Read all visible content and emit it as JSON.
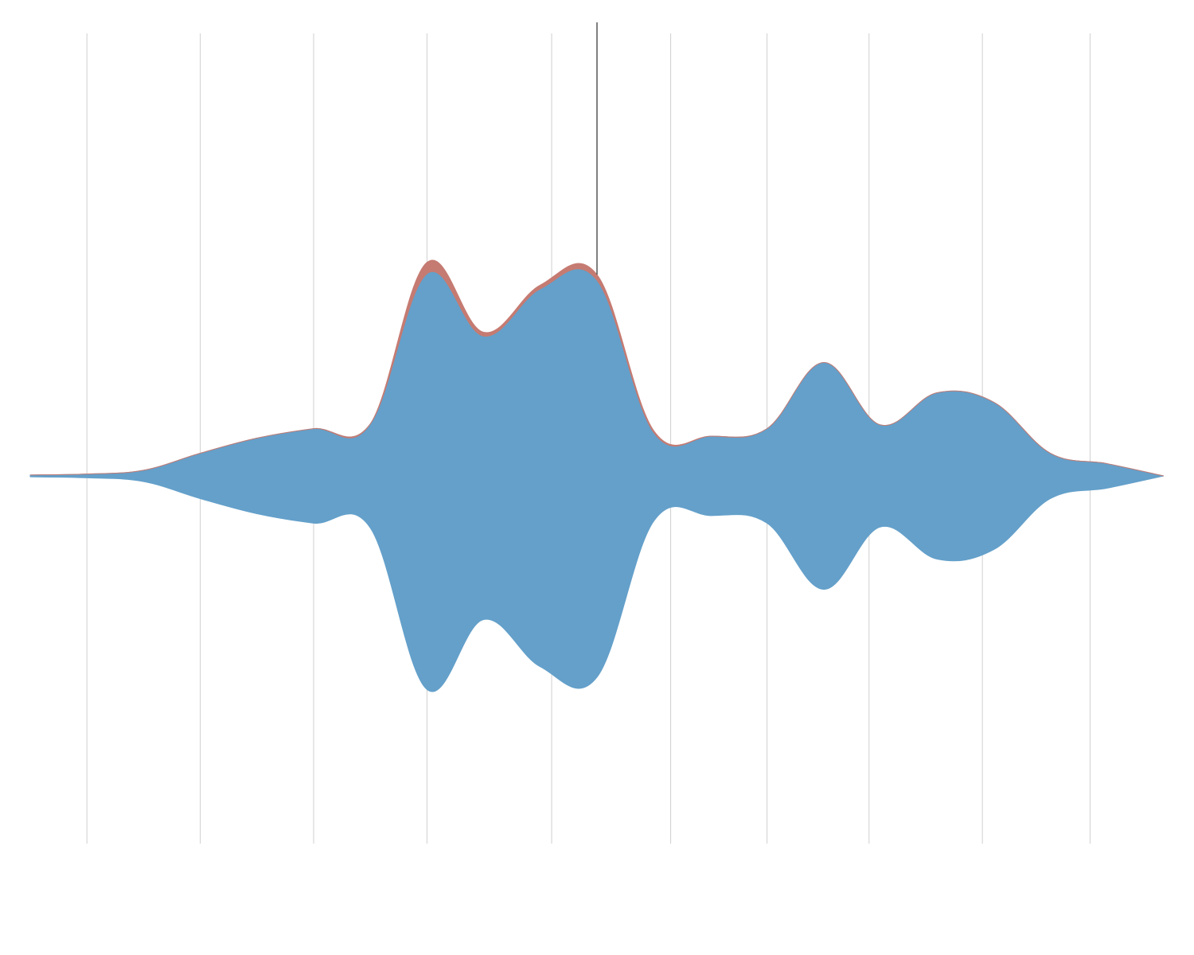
{
  "chart_data": {
    "type": "area",
    "subtype": "streamgraph",
    "baseline": "symmetric",
    "title": "",
    "xlabel": "",
    "ylabel": "",
    "axes_visible": false,
    "grid": "vertical",
    "legend": "none",
    "x": [
      0,
      1,
      2,
      3,
      4,
      5,
      6,
      7,
      8,
      9,
      10,
      11,
      12,
      13,
      14,
      15,
      16,
      17,
      18,
      19,
      20
    ],
    "series": [
      {
        "color": "#64a0ca",
        "values": [
          1,
          2,
          6,
          24,
          40,
          50,
          55,
          220,
          150,
          200,
          210,
          47,
          42,
          50,
          120,
          54,
          88,
          78,
          24,
          13,
          0
        ]
      },
      {
        "color": "#c57b72",
        "values": [
          0,
          0,
          0,
          0,
          0,
          0,
          0,
          6,
          2,
          2,
          3,
          1,
          0,
          0,
          0,
          0,
          0,
          0,
          0,
          0,
          0
        ]
      }
    ],
    "gridlines_x": [
      1,
      3,
      5,
      7,
      9.2,
      11.3,
      13,
      14.8,
      16.8,
      18.7
    ],
    "annotation": {
      "x": 10,
      "value": 240
    },
    "ylim": [
      -227,
      227
    ]
  }
}
